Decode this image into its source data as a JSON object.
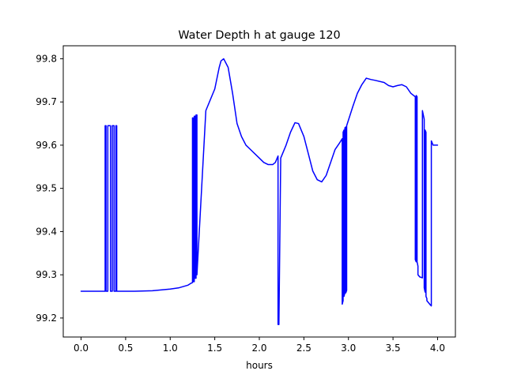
{
  "chart_data": {
    "type": "line",
    "title": "Water Depth h at gauge 120",
    "xlabel": "hours",
    "ylabel": "",
    "xlim": [
      -0.2,
      4.2
    ],
    "ylim": [
      99.156,
      99.83
    ],
    "xticks": [
      0.0,
      0.5,
      1.0,
      1.5,
      2.0,
      2.5,
      3.0,
      3.5,
      4.0
    ],
    "xtick_labels": [
      "0.0",
      "0.5",
      "1.0",
      "1.5",
      "2.0",
      "2.5",
      "3.0",
      "3.5",
      "4.0"
    ],
    "yticks": [
      99.2,
      99.3,
      99.4,
      99.5,
      99.6,
      99.7,
      99.8
    ],
    "ytick_labels": [
      "99.2",
      "99.3",
      "99.4",
      "99.5",
      "99.6",
      "99.7",
      "99.8"
    ],
    "grid": false,
    "legend": "none",
    "series": [
      {
        "color": "#0000ff",
        "x": [
          0.0,
          0.27,
          0.27,
          0.28,
          0.28,
          0.3,
          0.3,
          0.33,
          0.33,
          0.35,
          0.35,
          0.37,
          0.37,
          0.39,
          0.39,
          0.4,
          0.4,
          0.42,
          0.42,
          0.6,
          0.8,
          1.0,
          1.1,
          1.2,
          1.23,
          1.25,
          1.25,
          1.26,
          1.26,
          1.27,
          1.27,
          1.28,
          1.28,
          1.29,
          1.29,
          1.3,
          1.3,
          1.4,
          1.5,
          1.55,
          1.57,
          1.6,
          1.65,
          1.7,
          1.75,
          1.8,
          1.85,
          1.9,
          2.0,
          2.05,
          2.1,
          2.15,
          2.18,
          2.2,
          2.21,
          2.21,
          2.22,
          2.22,
          2.24,
          2.3,
          2.35,
          2.4,
          2.44,
          2.5,
          2.55,
          2.6,
          2.65,
          2.7,
          2.75,
          2.8,
          2.85,
          2.9,
          2.93,
          2.93,
          2.94,
          2.94,
          2.95,
          2.95,
          2.96,
          2.96,
          2.97,
          2.97,
          2.98,
          2.98,
          3.05,
          3.1,
          3.15,
          3.2,
          3.25,
          3.3,
          3.4,
          3.45,
          3.5,
          3.55,
          3.6,
          3.65,
          3.7,
          3.75,
          3.75,
          3.76,
          3.76,
          3.77,
          3.77,
          3.78,
          3.78,
          3.8,
          3.83,
          3.83,
          3.84,
          3.85,
          3.85,
          3.86,
          3.86,
          3.87,
          3.87,
          3.88,
          3.88,
          3.9,
          3.92,
          3.93,
          3.93,
          3.95,
          3.98,
          4.0
        ],
        "y": [
          99.262,
          99.262,
          99.645,
          99.645,
          99.262,
          99.262,
          99.645,
          99.645,
          99.262,
          99.262,
          99.645,
          99.645,
          99.262,
          99.262,
          99.645,
          99.645,
          99.262,
          99.262,
          99.262,
          99.262,
          99.263,
          99.267,
          99.27,
          99.276,
          99.28,
          99.282,
          99.663,
          99.663,
          99.284,
          99.284,
          99.667,
          99.667,
          99.292,
          99.292,
          99.67,
          99.67,
          99.3,
          99.68,
          99.73,
          99.78,
          99.795,
          99.8,
          99.78,
          99.72,
          99.65,
          99.62,
          99.6,
          99.59,
          99.57,
          99.56,
          99.555,
          99.555,
          99.56,
          99.57,
          99.575,
          99.185,
          99.185,
          99.19,
          99.57,
          99.6,
          99.63,
          99.652,
          99.65,
          99.62,
          99.58,
          99.54,
          99.52,
          99.515,
          99.53,
          99.56,
          99.59,
          99.605,
          99.615,
          99.232,
          99.24,
          99.63,
          99.635,
          99.25,
          99.258,
          99.64,
          99.642,
          99.258,
          99.264,
          99.645,
          99.69,
          99.72,
          99.74,
          99.755,
          99.752,
          99.75,
          99.745,
          99.738,
          99.735,
          99.738,
          99.74,
          99.735,
          99.72,
          99.712,
          99.335,
          99.33,
          99.715,
          99.712,
          99.33,
          99.32,
          99.3,
          99.295,
          99.293,
          99.68,
          99.67,
          99.66,
          99.27,
          99.26,
          99.635,
          99.63,
          99.25,
          99.245,
          99.24,
          99.235,
          99.23,
          99.228,
          99.61,
          99.6,
          99.6,
          99.6
        ]
      }
    ]
  }
}
